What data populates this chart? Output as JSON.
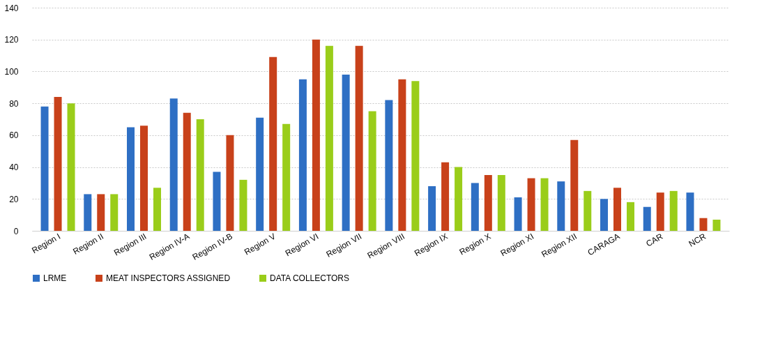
{
  "chart_data": {
    "type": "bar",
    "categories": [
      "Region I",
      "Region II",
      "Region III",
      "Region IV-A",
      "Region IV-B",
      "Region V",
      "Region VI",
      "Region VII",
      "Region VIII",
      "Region IX",
      "Region X",
      "Region XI",
      "Region XII",
      "CARAGA",
      "CAR",
      "NCR"
    ],
    "series": [
      {
        "name": "LRME",
        "color": "#2e6fc4",
        "values": [
          78,
          23,
          65,
          83,
          37,
          71,
          95,
          98,
          82,
          28,
          30,
          21,
          31,
          20,
          15,
          24
        ]
      },
      {
        "name": "MEAT INSPECTORS ASSIGNED",
        "color": "#c8411a",
        "values": [
          84,
          23,
          66,
          74,
          60,
          109,
          120,
          116,
          95,
          43,
          35,
          33,
          57,
          27,
          24,
          8
        ]
      },
      {
        "name": "DATA COLLECTORS",
        "color": "#9acd1a",
        "values": [
          80,
          23,
          27,
          70,
          32,
          67,
          116,
          75,
          94,
          40,
          35,
          33,
          25,
          18,
          25,
          7
        ]
      }
    ],
    "ylim": [
      0,
      140
    ],
    "yticks": [
      0,
      20,
      40,
      60,
      80,
      100,
      120,
      140
    ],
    "grid": "y",
    "legend": "bottom"
  }
}
